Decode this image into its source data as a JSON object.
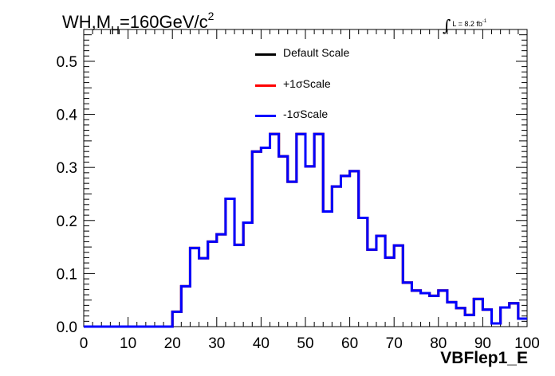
{
  "chart_data": {
    "type": "histogram",
    "title_main": "WH,M",
    "title_sub": "H",
    "title_rest": "=160GeV/c",
    "title_sup": "2",
    "lumi_label": "L = 8.2 fb",
    "lumi_sup": "-1",
    "xlabel": "VBFlep1_E",
    "xlim": [
      0,
      100
    ],
    "ylim": [
      0,
      0.56
    ],
    "x_ticks": [
      0,
      10,
      20,
      30,
      40,
      50,
      60,
      70,
      80,
      90,
      100
    ],
    "y_ticks": [
      0.0,
      0.1,
      0.2,
      0.3,
      0.4,
      0.5
    ],
    "y_tick_labels": [
      "0.0",
      "0.1",
      "0.2",
      "0.3",
      "0.4",
      "0.5"
    ],
    "bin_edges": [
      0,
      2,
      4,
      6,
      8,
      10,
      12,
      14,
      16,
      18,
      20,
      22,
      24,
      26,
      28,
      30,
      32,
      34,
      36,
      38,
      40,
      42,
      44,
      46,
      48,
      50,
      52,
      54,
      56,
      58,
      60,
      62,
      64,
      66,
      68,
      70,
      72,
      74,
      76,
      78,
      80,
      82,
      84,
      86,
      88,
      90,
      92,
      94,
      96,
      98,
      100
    ],
    "series": [
      {
        "name": "Default Scale",
        "color": "#000000",
        "values": [
          0,
          0,
          0,
          0,
          0,
          0,
          0,
          0,
          0,
          0,
          0.028,
          0.076,
          0.148,
          0.129,
          0.16,
          0.174,
          0.241,
          0.154,
          0.196,
          0.33,
          0.337,
          0.363,
          0.321,
          0.273,
          0.363,
          0.302,
          0.363,
          0.217,
          0.264,
          0.284,
          0.293,
          0.205,
          0.145,
          0.171,
          0.13,
          0.153,
          0.083,
          0.068,
          0.063,
          0.058,
          0.068,
          0.046,
          0.035,
          0.022,
          0.052,
          0.032,
          0.006,
          0.036,
          0.044,
          0.015
        ]
      },
      {
        "name": "+1σScale",
        "color": "#ff0000",
        "values": [
          0,
          0,
          0,
          0,
          0,
          0,
          0,
          0,
          0,
          0,
          0.028,
          0.076,
          0.148,
          0.129,
          0.16,
          0.174,
          0.241,
          0.154,
          0.196,
          0.33,
          0.337,
          0.363,
          0.321,
          0.273,
          0.363,
          0.302,
          0.363,
          0.217,
          0.264,
          0.284,
          0.293,
          0.205,
          0.145,
          0.171,
          0.13,
          0.153,
          0.083,
          0.068,
          0.063,
          0.058,
          0.068,
          0.046,
          0.035,
          0.022,
          0.052,
          0.032,
          0.006,
          0.036,
          0.044,
          0.015
        ]
      },
      {
        "name": "-1σScale",
        "color": "#0000ff",
        "values": [
          0,
          0,
          0,
          0,
          0,
          0,
          0,
          0,
          0,
          0,
          0.028,
          0.076,
          0.148,
          0.129,
          0.16,
          0.174,
          0.241,
          0.154,
          0.196,
          0.33,
          0.337,
          0.363,
          0.321,
          0.273,
          0.363,
          0.302,
          0.363,
          0.217,
          0.264,
          0.284,
          0.293,
          0.205,
          0.145,
          0.171,
          0.13,
          0.153,
          0.083,
          0.068,
          0.063,
          0.058,
          0.068,
          0.046,
          0.035,
          0.022,
          0.052,
          0.032,
          0.006,
          0.036,
          0.044,
          0.015
        ]
      }
    ]
  }
}
